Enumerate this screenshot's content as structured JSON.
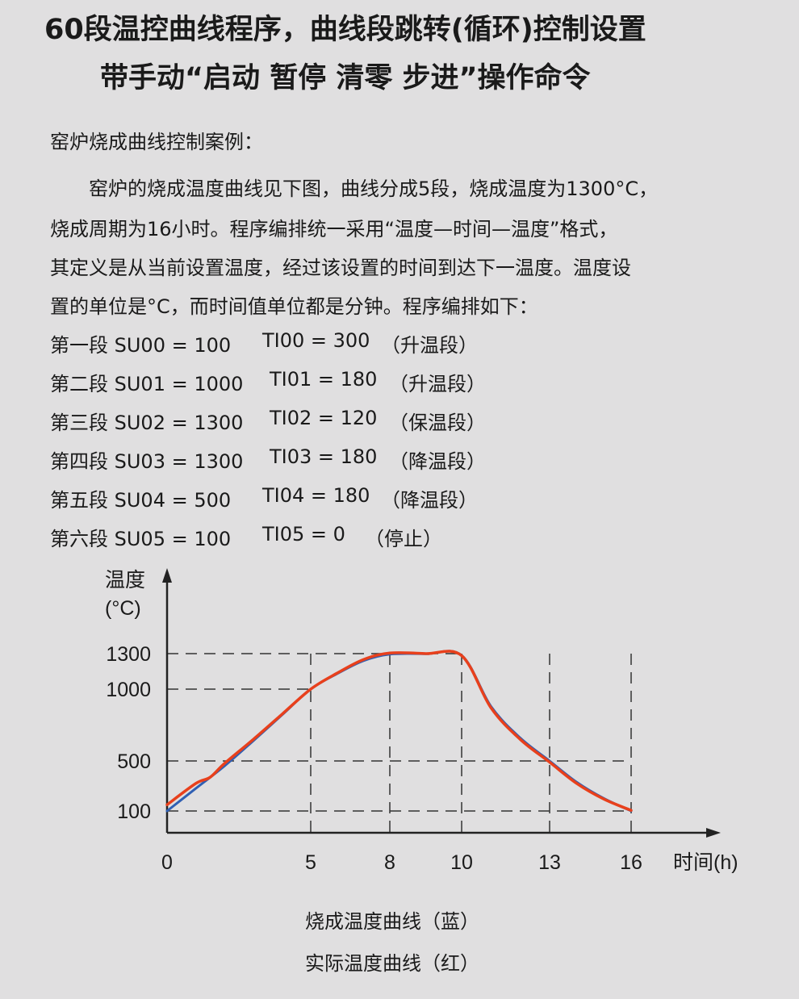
{
  "header": {
    "title_line1": "60段温控曲线程序，曲线段跳转(循环)控制设置",
    "title_line2": "带手动“启动  暂停  清零  步进”操作命令"
  },
  "section_heading": "窑炉烧成曲线控制案例：",
  "paragraph": [
    "窑炉的烧成温度曲线见下图，曲线分成5段，烧成温度为1300°C，",
    "烧成周期为16小时。程序编排统一采用“温度—时间—温度”格式，",
    "其定义是从当前设置温度，经过该设置的时间到达下一温度。温度设",
    "置的单位是°C，而时间值单位都是分钟。程序编排如下："
  ],
  "program": [
    {
      "label": "第一段 SU00 = 100",
      "ti": "TI00 = 300",
      "note": "（升温段）"
    },
    {
      "label": "第二段 SU01 = 1000",
      "ti": "TI01 = 180",
      "note": "（升温段）"
    },
    {
      "label": "第三段 SU02 = 1300",
      "ti": "TI02 = 120",
      "note": "（保温段）"
    },
    {
      "label": "第四段 SU03 = 1300",
      "ti": "TI03 = 180",
      "note": "（降温段）"
    },
    {
      "label": "第五段 SU04 = 500",
      "ti": "TI04 = 180",
      "note": "（降温段）"
    },
    {
      "label": "第六段 SU05 = 100",
      "ti": "TI05 = 0",
      "note": "（停止）"
    }
  ],
  "chart_data": {
    "type": "line",
    "ylabel_line1": "温度",
    "ylabel_line2": "(°C)",
    "xlabel": "时间(h)",
    "x_ticks": [
      "0",
      "5",
      "8",
      "10",
      "13",
      "16"
    ],
    "y_ticks": [
      "100",
      "500",
      "1000",
      "1300"
    ],
    "xlim": [
      0,
      16
    ],
    "ylim": [
      0,
      1300
    ],
    "grid": "dashed reference lines at tick values",
    "series": [
      {
        "color": "#2f5fb3",
        "points": [
          [
            0,
            100
          ],
          [
            1,
            280
          ],
          [
            2,
            460
          ],
          [
            3,
            640
          ],
          [
            4,
            820
          ],
          [
            5,
            1000
          ],
          [
            6,
            1130
          ],
          [
            7,
            1240
          ],
          [
            8,
            1295
          ],
          [
            9,
            1298
          ],
          [
            10,
            1285
          ],
          [
            11,
            880
          ],
          [
            12,
            660
          ],
          [
            13,
            500
          ],
          [
            14,
            330
          ],
          [
            15,
            200
          ],
          [
            16,
            100
          ]
        ]
      },
      {
        "color": "#e8401c",
        "points": [
          [
            0,
            150
          ],
          [
            1,
            320
          ],
          [
            1.5,
            370
          ],
          [
            2,
            480
          ],
          [
            3,
            650
          ],
          [
            4,
            825
          ],
          [
            5,
            1000
          ],
          [
            6,
            1135
          ],
          [
            7,
            1250
          ],
          [
            8,
            1305
          ],
          [
            9,
            1300
          ],
          [
            10,
            1283
          ],
          [
            11,
            870
          ],
          [
            12,
            650
          ],
          [
            13,
            490
          ],
          [
            14,
            320
          ],
          [
            15,
            195
          ],
          [
            16,
            105
          ]
        ]
      }
    ],
    "legend": [
      "烧成温度曲线（蓝）",
      "实际温度曲线（红）"
    ]
  }
}
